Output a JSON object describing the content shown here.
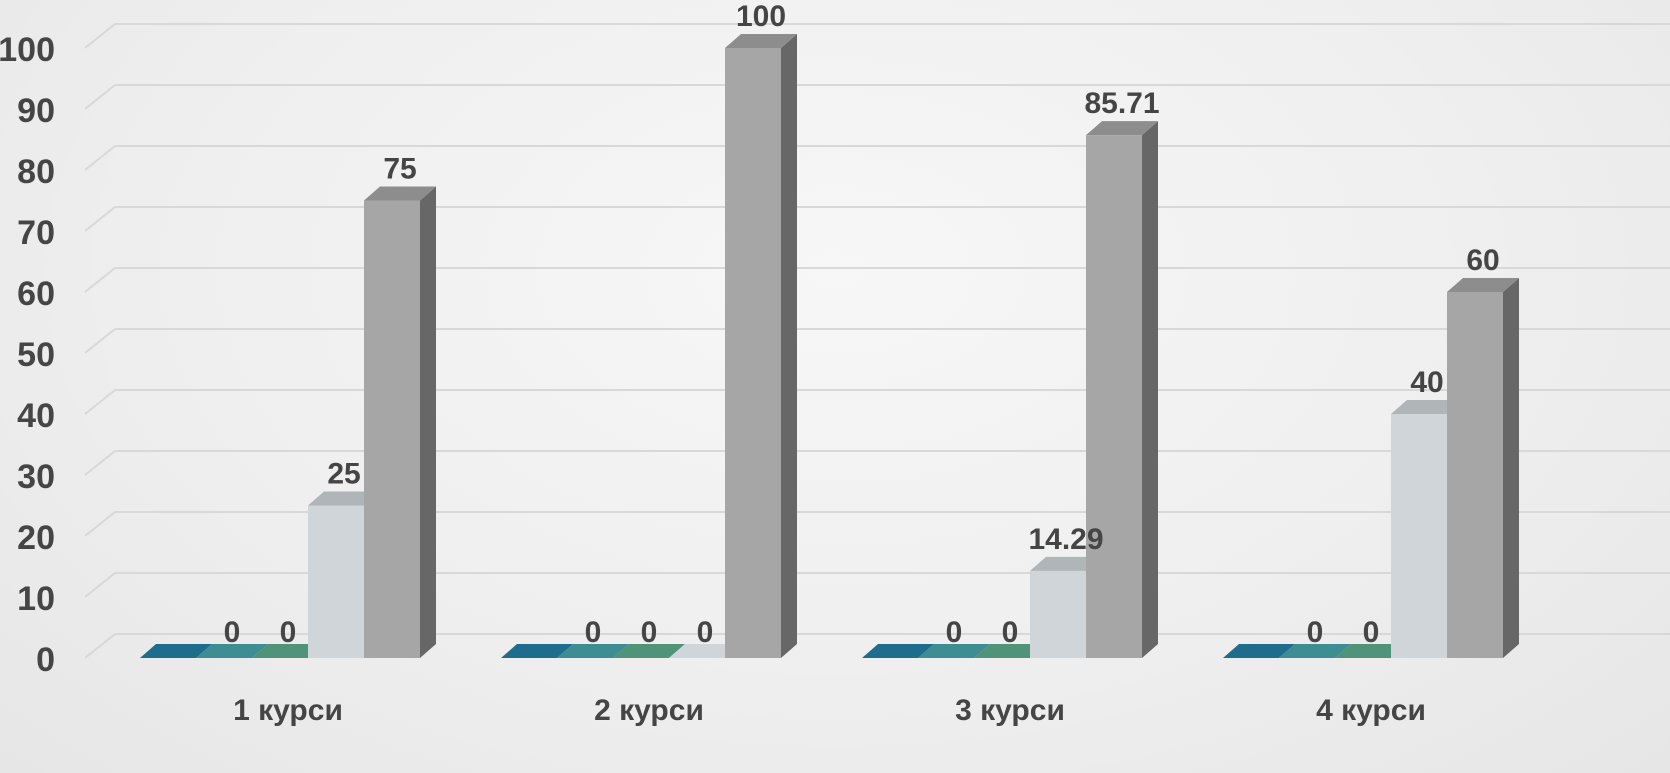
{
  "chart_data": {
    "type": "bar",
    "title": "",
    "xlabel": "",
    "ylabel": "",
    "ylim": [
      0,
      100
    ],
    "yticks": [
      "0",
      "10",
      "20",
      "30",
      "40",
      "50",
      "60",
      "70",
      "80",
      "90",
      "100"
    ],
    "grid": true,
    "legend": "none",
    "categories": [
      "1 курси",
      "2 курси",
      "3 курси",
      "4 курси"
    ],
    "series": [
      {
        "color": "#1f6d8c",
        "values": [
          0,
          0,
          0,
          0
        ],
        "labels": [
          "",
          "",
          "",
          ""
        ]
      },
      {
        "color": "#3d8d92",
        "values": [
          0,
          0,
          0,
          0
        ],
        "labels": [
          "0",
          "0",
          "0",
          "0"
        ]
      },
      {
        "color": "#4f9478",
        "values": [
          0,
          0,
          0,
          0
        ],
        "labels": [
          "0",
          "0",
          "0",
          "0"
        ]
      },
      {
        "color": "#cfd5d8",
        "values": [
          25,
          0,
          14.29,
          40
        ],
        "labels": [
          "25",
          "0",
          "14.29",
          "40"
        ]
      },
      {
        "color": "#a6a6a6",
        "values": [
          75,
          100,
          85.71,
          60
        ],
        "labels": [
          "75",
          "100",
          "85.71",
          "60"
        ]
      }
    ]
  }
}
